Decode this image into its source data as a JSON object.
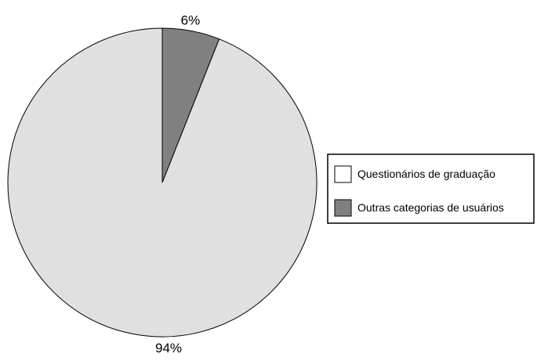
{
  "chart_data": {
    "type": "pie",
    "title": "",
    "slices": [
      {
        "label": "Questionários de graduação",
        "value": 94,
        "value_label": "94%",
        "color": "#e0e0e0"
      },
      {
        "label": "Outras categorias de usuários",
        "value": 6,
        "value_label": "6%",
        "color": "#808080"
      }
    ],
    "start_angle_deg": 0,
    "direction": "counterclockwise",
    "legend_position": "right",
    "outline_color": "#000000"
  }
}
